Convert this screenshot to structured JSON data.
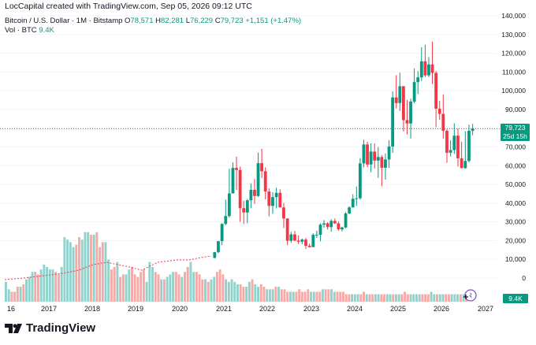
{
  "header": {
    "credit": "LocCapital created with TradingView.com, Sep 05, 2026 09:12 UTC"
  },
  "legend": {
    "symbol": "Bitcoin / U.S. Dollar · 1M · Bitstamp",
    "o_label": "O",
    "o_value": "78,571",
    "h_label": "H",
    "h_value": "82,281",
    "l_label": "L",
    "l_value": "76,229",
    "c_label": "C",
    "c_value": "79,723",
    "change": "+1,151 (+1.47%)",
    "vol_label": "Vol · BTC",
    "vol_value": "9.4K"
  },
  "price_tag": {
    "price": "79,723",
    "countdown": "25d 15h"
  },
  "volume_tag": "9.4K",
  "brand": {
    "name": "TradingView"
  },
  "colors": {
    "up": "#089981",
    "down": "#f23645",
    "vol_up": "#92d2cc",
    "vol_down": "#f7a9a7",
    "ma": "#f23645"
  },
  "chart_data": {
    "type": "candlestick",
    "symbol": "BTCUSD",
    "interval": "1M",
    "y_ticks": [
      "140,000",
      "130,000",
      "120,000",
      "110,000",
      "100,000",
      "90,000",
      "80,000",
      "70,000",
      "60,000",
      "50,000",
      "40,000",
      "30,000",
      "20,000",
      "10,000",
      "0"
    ],
    "x_ticks": [
      "16",
      "2017",
      "2018",
      "2019",
      "2020",
      "2021",
      "2022",
      "2023",
      "2024",
      "2025",
      "2026",
      "2027"
    ],
    "ylim": [
      0,
      140000
    ],
    "last_price": 79723,
    "candles": [
      {
        "t": "2020-10",
        "o": 10800,
        "h": 14000,
        "l": 10400,
        "c": 13800
      },
      {
        "t": "2020-11",
        "o": 13800,
        "h": 19800,
        "l": 13300,
        "c": 19700
      },
      {
        "t": "2020-12",
        "o": 19700,
        "h": 29300,
        "l": 17600,
        "c": 28900
      },
      {
        "t": "2021-01",
        "o": 28900,
        "h": 41900,
        "l": 28200,
        "c": 33100
      },
      {
        "t": "2021-02",
        "o": 33100,
        "h": 58300,
        "l": 32300,
        "c": 45200
      },
      {
        "t": "2021-03",
        "o": 45200,
        "h": 61700,
        "l": 45100,
        "c": 58800
      },
      {
        "t": "2021-04",
        "o": 58800,
        "h": 64800,
        "l": 47000,
        "c": 57700
      },
      {
        "t": "2021-05",
        "o": 57700,
        "h": 59500,
        "l": 30000,
        "c": 37300
      },
      {
        "t": "2021-06",
        "o": 37300,
        "h": 41300,
        "l": 28800,
        "c": 35000
      },
      {
        "t": "2021-07",
        "o": 35000,
        "h": 42200,
        "l": 29300,
        "c": 41500
      },
      {
        "t": "2021-08",
        "o": 41500,
        "h": 50500,
        "l": 37300,
        "c": 47100
      },
      {
        "t": "2021-09",
        "o": 47100,
        "h": 52900,
        "l": 39600,
        "c": 43800
      },
      {
        "t": "2021-10",
        "o": 43800,
        "h": 67000,
        "l": 43300,
        "c": 61300
      },
      {
        "t": "2021-11",
        "o": 61300,
        "h": 69000,
        "l": 53300,
        "c": 57000
      },
      {
        "t": "2021-12",
        "o": 57000,
        "h": 59100,
        "l": 42000,
        "c": 46200
      },
      {
        "t": "2022-01",
        "o": 46200,
        "h": 47900,
        "l": 32900,
        "c": 38500
      },
      {
        "t": "2022-02",
        "o": 38500,
        "h": 45800,
        "l": 34300,
        "c": 43200
      },
      {
        "t": "2022-03",
        "o": 43200,
        "h": 48200,
        "l": 37200,
        "c": 45500
      },
      {
        "t": "2022-04",
        "o": 45500,
        "h": 47400,
        "l": 37700,
        "c": 37700
      },
      {
        "t": "2022-05",
        "o": 37700,
        "h": 40000,
        "l": 26700,
        "c": 31800
      },
      {
        "t": "2022-06",
        "o": 31800,
        "h": 31900,
        "l": 17600,
        "c": 19900
      },
      {
        "t": "2022-07",
        "o": 19900,
        "h": 24700,
        "l": 18800,
        "c": 23300
      },
      {
        "t": "2022-08",
        "o": 23300,
        "h": 25200,
        "l": 19600,
        "c": 20000
      },
      {
        "t": "2022-09",
        "o": 20000,
        "h": 22800,
        "l": 18200,
        "c": 19400
      },
      {
        "t": "2022-10",
        "o": 19400,
        "h": 21100,
        "l": 18100,
        "c": 20500
      },
      {
        "t": "2022-11",
        "o": 20500,
        "h": 21500,
        "l": 15500,
        "c": 17200
      },
      {
        "t": "2022-12",
        "o": 17200,
        "h": 18400,
        "l": 16300,
        "c": 16500
      },
      {
        "t": "2023-01",
        "o": 16500,
        "h": 23900,
        "l": 16500,
        "c": 23100
      },
      {
        "t": "2023-02",
        "o": 23100,
        "h": 25300,
        "l": 21400,
        "c": 23100
      },
      {
        "t": "2023-03",
        "o": 23100,
        "h": 29200,
        "l": 19600,
        "c": 28500
      },
      {
        "t": "2023-04",
        "o": 28500,
        "h": 31000,
        "l": 26900,
        "c": 29200
      },
      {
        "t": "2023-05",
        "o": 29200,
        "h": 29800,
        "l": 25900,
        "c": 27200
      },
      {
        "t": "2023-06",
        "o": 27200,
        "h": 31400,
        "l": 24800,
        "c": 30500
      },
      {
        "t": "2023-07",
        "o": 30500,
        "h": 31800,
        "l": 28900,
        "c": 29200
      },
      {
        "t": "2023-08",
        "o": 29200,
        "h": 30200,
        "l": 25200,
        "c": 26000
      },
      {
        "t": "2023-09",
        "o": 26000,
        "h": 27400,
        "l": 24900,
        "c": 27000
      },
      {
        "t": "2023-10",
        "o": 27000,
        "h": 35200,
        "l": 26600,
        "c": 34500
      },
      {
        "t": "2023-11",
        "o": 34500,
        "h": 38400,
        "l": 34100,
        "c": 37700
      },
      {
        "t": "2023-12",
        "o": 37700,
        "h": 44700,
        "l": 37600,
        "c": 42300
      },
      {
        "t": "2024-01",
        "o": 42300,
        "h": 48900,
        "l": 38500,
        "c": 42600
      },
      {
        "t": "2024-02",
        "o": 42600,
        "h": 64000,
        "l": 41900,
        "c": 61200
      },
      {
        "t": "2024-03",
        "o": 61200,
        "h": 73800,
        "l": 59000,
        "c": 71300
      },
      {
        "t": "2024-04",
        "o": 71300,
        "h": 72700,
        "l": 59200,
        "c": 60600
      },
      {
        "t": "2024-05",
        "o": 60600,
        "h": 71900,
        "l": 56500,
        "c": 67500
      },
      {
        "t": "2024-06",
        "o": 67500,
        "h": 71900,
        "l": 58400,
        "c": 62700
      },
      {
        "t": "2024-07",
        "o": 62700,
        "h": 70000,
        "l": 53500,
        "c": 64600
      },
      {
        "t": "2024-08",
        "o": 64600,
        "h": 65600,
        "l": 49000,
        "c": 58900
      },
      {
        "t": "2024-09",
        "o": 58900,
        "h": 66500,
        "l": 52500,
        "c": 63300
      },
      {
        "t": "2024-10",
        "o": 63300,
        "h": 73600,
        "l": 58900,
        "c": 70200
      },
      {
        "t": "2024-11",
        "o": 70200,
        "h": 99600,
        "l": 66800,
        "c": 96400
      },
      {
        "t": "2024-12",
        "o": 96400,
        "h": 108300,
        "l": 90500,
        "c": 93400
      },
      {
        "t": "2025-01",
        "o": 93400,
        "h": 109600,
        "l": 89200,
        "c": 102400
      },
      {
        "t": "2025-02",
        "o": 102400,
        "h": 102500,
        "l": 78200,
        "c": 84300
      },
      {
        "t": "2025-03",
        "o": 84300,
        "h": 95000,
        "l": 76600,
        "c": 82500
      },
      {
        "t": "2025-04",
        "o": 82500,
        "h": 95800,
        "l": 74500,
        "c": 94200
      },
      {
        "t": "2025-05",
        "o": 94200,
        "h": 111900,
        "l": 93300,
        "c": 104600
      },
      {
        "t": "2025-06",
        "o": 104600,
        "h": 110500,
        "l": 98200,
        "c": 107100
      },
      {
        "t": "2025-07",
        "o": 107100,
        "h": 123200,
        "l": 105200,
        "c": 115700
      },
      {
        "t": "2025-08",
        "o": 115700,
        "h": 124500,
        "l": 107300,
        "c": 108200
      },
      {
        "t": "2025-09",
        "o": 108200,
        "h": 117900,
        "l": 107200,
        "c": 114000
      },
      {
        "t": "2025-10",
        "o": 114000,
        "h": 126200,
        "l": 103500,
        "c": 109500
      },
      {
        "t": "2025-11",
        "o": 109500,
        "h": 110500,
        "l": 80500,
        "c": 90400
      },
      {
        "t": "2025-12",
        "o": 90400,
        "h": 94600,
        "l": 84400,
        "c": 87600
      },
      {
        "t": "2026-01",
        "o": 87600,
        "h": 97900,
        "l": 74500,
        "c": 78600
      },
      {
        "t": "2026-02",
        "o": 78600,
        "h": 79500,
        "l": 61500,
        "c": 66900
      },
      {
        "t": "2026-03",
        "o": 66900,
        "h": 73500,
        "l": 64800,
        "c": 68300
      },
      {
        "t": "2026-04",
        "o": 68300,
        "h": 82600,
        "l": 66300,
        "c": 76000
      },
      {
        "t": "2026-05",
        "o": 76000,
        "h": 79800,
        "l": 59500,
        "c": 63900
      },
      {
        "t": "2026-06",
        "o": 63900,
        "h": 72800,
        "l": 58600,
        "c": 58700
      },
      {
        "t": "2026-07",
        "o": 58700,
        "h": 78500,
        "l": 58300,
        "c": 62500
      },
      {
        "t": "2026-08",
        "o": 62500,
        "h": 81900,
        "l": 61800,
        "c": 78600
      },
      {
        "t": "2026-09",
        "o": 78571,
        "h": 82281,
        "l": 76229,
        "c": 79723
      }
    ]
  }
}
